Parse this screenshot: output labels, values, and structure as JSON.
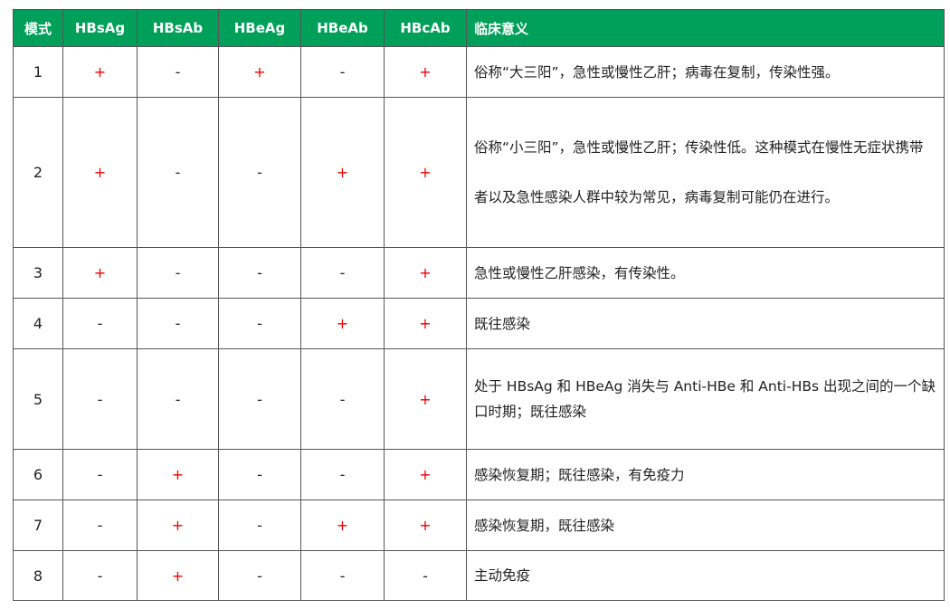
{
  "headers": [
    "模式",
    "HBsAg",
    "HBsAb",
    "HBeAg",
    "HBeAb",
    "HBcAb",
    "临床意义"
  ],
  "rows": [
    {
      "mode": "1",
      "v": [
        "+",
        "-",
        "+",
        "-",
        "+"
      ],
      "meaning": "俗称“大三阳”，急性或慢性乙肝；病毒在复制，传染性强。"
    },
    {
      "mode": "2",
      "v": [
        "+",
        "-",
        "-",
        "+",
        "+"
      ],
      "meaning": "俗称“小三阳”，急性或慢性乙肝；传染性低。这种模式在慢性无症状携带者以及急性感染人群中较为常见，病毒复制可能仍在进行。"
    },
    {
      "mode": "3",
      "v": [
        "+",
        "-",
        "-",
        "-",
        "+"
      ],
      "meaning": "急性或慢性乙肝感染，有传染性。"
    },
    {
      "mode": "4",
      "v": [
        "-",
        "-",
        "-",
        "+",
        "+"
      ],
      "meaning": "既往感染"
    },
    {
      "mode": "5",
      "v": [
        "-",
        "-",
        "-",
        "-",
        "+"
      ],
      "meaning": "处于 HBsAg 和 HBeAg 消失与 Anti-HBe 和 Anti-HBs 出现之间的一个缺口时期；既往感染"
    },
    {
      "mode": "6",
      "v": [
        "-",
        "+",
        "-",
        "-",
        "+"
      ],
      "meaning": "感染恢复期；既往感染，有免疫力"
    },
    {
      "mode": "7",
      "v": [
        "-",
        "+",
        "-",
        "+",
        "+"
      ],
      "meaning": "感染恢复期，既往感染"
    },
    {
      "mode": "8",
      "v": [
        "-",
        "+",
        "-",
        "-",
        "-"
      ],
      "meaning": "主动免疫"
    }
  ],
  "colors": {
    "header_bg": "#00a05a",
    "positive": "#e00000"
  }
}
